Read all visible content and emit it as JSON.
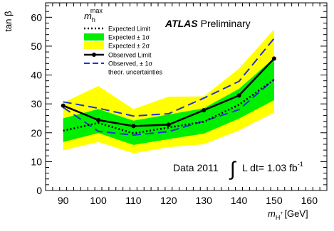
{
  "chart_data": {
    "type": "line",
    "ylabel": "tan β",
    "xlabel": {
      "main": "m",
      "sub": "H",
      "sup": "+",
      "unit": "[GeV]"
    },
    "xlim": [
      85,
      165
    ],
    "ylim": [
      0,
      65
    ],
    "xticks": [
      90,
      100,
      110,
      120,
      130,
      140,
      150,
      160
    ],
    "yticks": [
      0,
      10,
      20,
      30,
      40,
      50,
      60
    ],
    "x": [
      90,
      100,
      110,
      120,
      130,
      140,
      150
    ],
    "series": [
      {
        "name": "Expected Limit",
        "style": "dotted",
        "color": "#000000",
        "values": [
          20.7,
          23.4,
          19.8,
          21.8,
          23.8,
          29.7,
          38.4
        ]
      },
      {
        "name": "Expected ± 1σ",
        "style": "band",
        "color": "#00ee00",
        "lower": [
          16.8,
          19.9,
          15.8,
          17.8,
          19.7,
          24.9,
          31.3
        ],
        "upper": [
          25.0,
          28.2,
          24.2,
          26.3,
          28.5,
          35.2,
          45.9
        ]
      },
      {
        "name": "Expected ± 2σ",
        "style": "band",
        "color": "#ffff00",
        "lower": [
          13.9,
          16.8,
          12.9,
          15.0,
          16.0,
          20.8,
          27.0
        ],
        "upper": [
          30.4,
          36.2,
          28.2,
          32.5,
          32.6,
          42.2,
          55.8
        ]
      },
      {
        "name": "Observed Limit",
        "style": "solid-markers",
        "color": "#000000",
        "values": [
          29.4,
          24.4,
          22.3,
          22.8,
          27.8,
          32.9,
          45.7
        ]
      },
      {
        "name": "Observed, ± 1σ",
        "name_line2": "theor. uncertainties",
        "style": "dashed",
        "color": "#2233cc",
        "lower": [
          28.8,
          20.5,
          19.2,
          20.4,
          24.0,
          28.0,
          38.5
        ],
        "upper": [
          30.7,
          28.5,
          25.8,
          26.6,
          32.0,
          37.8,
          52.7
        ]
      }
    ],
    "scenario": {
      "main": "m",
      "sub": "h",
      "sup": "max"
    },
    "experiment": {
      "bold": "ATLAS",
      "rest": "Preliminary"
    },
    "lumi": {
      "prefix": "Data 2011",
      "integral": "∫",
      "text": "L dt= 1.03 fb",
      "sup": "-1"
    },
    "legend_position": "top-left"
  }
}
